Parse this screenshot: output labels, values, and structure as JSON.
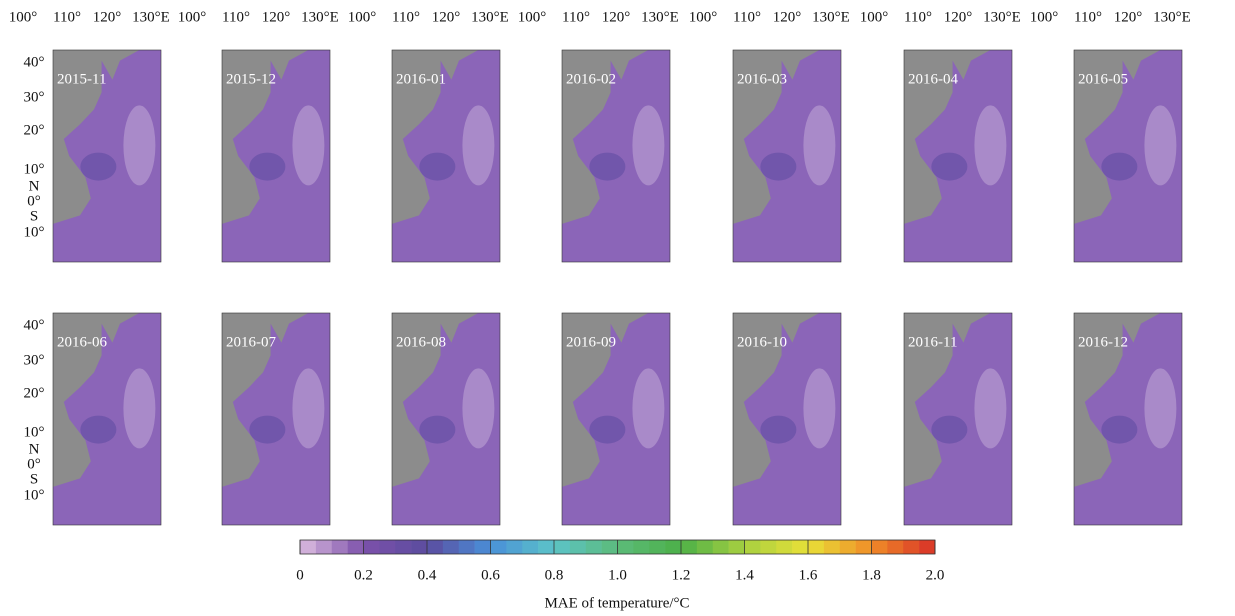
{
  "panels": [
    "2015-11",
    "2015-12",
    "2016-01",
    "2016-02",
    "2016-03",
    "2016-04",
    "2016-05",
    "2016-06",
    "2016-07",
    "2016-08",
    "2016-09",
    "2016-10",
    "2016-11",
    "2016-12"
  ],
  "lon_ticks": [
    "100°",
    "110°",
    "120°",
    "130°E"
  ],
  "lat_ticks": [
    "40°",
    "30°",
    "20°",
    "10°",
    "N",
    "0°",
    "S",
    "10°"
  ],
  "colorbar": {
    "label": "MAE of temperature/°C",
    "lim": [
      0,
      2
    ],
    "ticks": [
      0,
      0.2,
      0.4,
      0.6,
      0.8,
      {
        "value": 1,
        "label": "1.0"
      },
      1.2,
      1.4,
      1.6,
      1.8,
      {
        "value": 2,
        "label": "2.0"
      }
    ],
    "colors": [
      "#dcbde0",
      "#7c50aa",
      "#5b4c9f",
      "#4a8fd8",
      "#5cc3c8",
      "#5cbb7a",
      "#4cb048",
      "#a8d040",
      "#e8e038",
      "#f08c28",
      "#d83028"
    ]
  }
}
